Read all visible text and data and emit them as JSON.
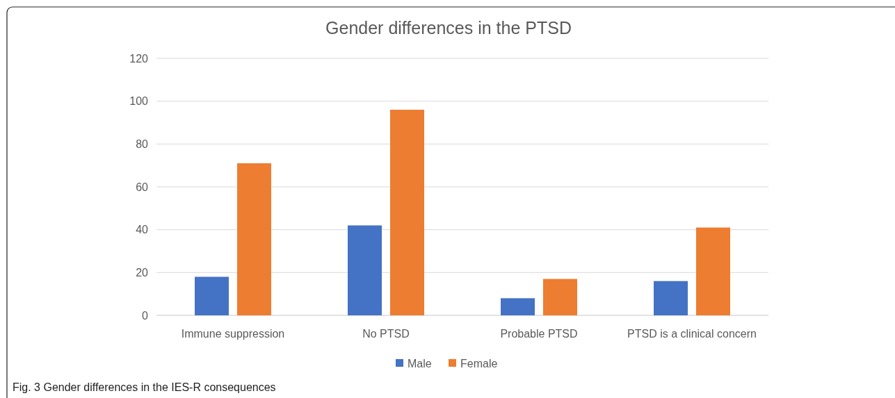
{
  "chart_data": {
    "type": "bar",
    "title": "Gender differences in the PTSD",
    "categories": [
      "Immune suppression",
      "No PTSD",
      "Probable PTSD",
      "PTSD is a clinical concern"
    ],
    "series": [
      {
        "name": "Male",
        "color": "#4472c4",
        "values": [
          18,
          42,
          8,
          16
        ]
      },
      {
        "name": "Female",
        "color": "#ed7d31",
        "values": [
          71,
          96,
          17,
          41
        ]
      }
    ],
    "ylim": [
      0,
      120
    ],
    "yticks": [
      0,
      20,
      40,
      60,
      80,
      100,
      120
    ],
    "grid": "y",
    "legend": "bottom",
    "annotations": [
      "Fig. 3 Gender differences in the IES-R consequences"
    ]
  }
}
